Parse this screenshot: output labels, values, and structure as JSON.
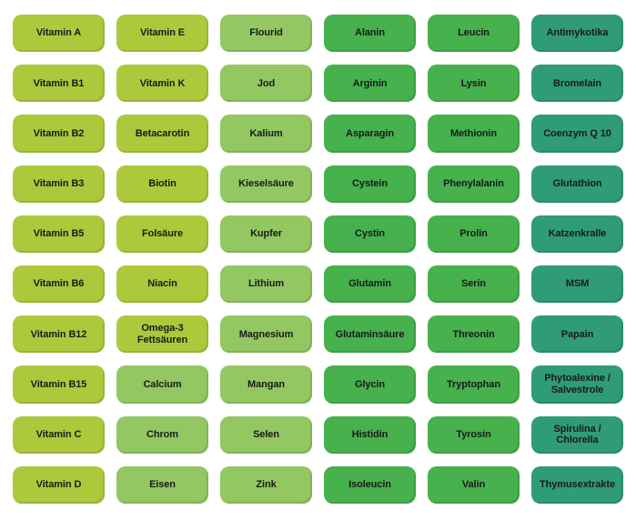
{
  "palette": {
    "vitamin": "#acc93b",
    "mineral": "#92c762",
    "amino": "#46b14d",
    "extra": "#2f9c75",
    "text": "#1a1a1a",
    "background": "#ffffff"
  },
  "grid": {
    "columns": 6,
    "rows": 10
  },
  "cells": [
    {
      "label": "Vitamin A",
      "category": "vitamin"
    },
    {
      "label": "Vitamin E",
      "category": "vitamin"
    },
    {
      "label": "Flourid",
      "category": "mineral"
    },
    {
      "label": "Alanin",
      "category": "amino"
    },
    {
      "label": "Leucin",
      "category": "amino"
    },
    {
      "label": "Antimykotika",
      "category": "extra"
    },
    {
      "label": "Vitamin B1",
      "category": "vitamin"
    },
    {
      "label": "Vitamin K",
      "category": "vitamin"
    },
    {
      "label": "Jod",
      "category": "mineral"
    },
    {
      "label": "Arginin",
      "category": "amino"
    },
    {
      "label": "Lysin",
      "category": "amino"
    },
    {
      "label": "Bromelain",
      "category": "extra"
    },
    {
      "label": "Vitamin B2",
      "category": "vitamin"
    },
    {
      "label": "Betacarotin",
      "category": "vitamin"
    },
    {
      "label": "Kalium",
      "category": "mineral"
    },
    {
      "label": "Asparagin",
      "category": "amino"
    },
    {
      "label": "Methionin",
      "category": "amino"
    },
    {
      "label": "Coenzym Q 10",
      "category": "extra"
    },
    {
      "label": "Vitamin B3",
      "category": "vitamin"
    },
    {
      "label": "Biotin",
      "category": "vitamin"
    },
    {
      "label": "Kieselsäure",
      "category": "mineral"
    },
    {
      "label": "Cystein",
      "category": "amino"
    },
    {
      "label": "Phenylalanin",
      "category": "amino"
    },
    {
      "label": "Glutathion",
      "category": "extra"
    },
    {
      "label": "Vitamin B5",
      "category": "vitamin"
    },
    {
      "label": "Folsäure",
      "category": "vitamin"
    },
    {
      "label": "Kupfer",
      "category": "mineral"
    },
    {
      "label": "Cystin",
      "category": "amino"
    },
    {
      "label": "Prolin",
      "category": "amino"
    },
    {
      "label": "Katzenkralle",
      "category": "extra"
    },
    {
      "label": "Vitamin B6",
      "category": "vitamin"
    },
    {
      "label": "Niacin",
      "category": "vitamin"
    },
    {
      "label": "Lithium",
      "category": "mineral"
    },
    {
      "label": "Glutamin",
      "category": "amino"
    },
    {
      "label": "Serin",
      "category": "amino"
    },
    {
      "label": "MSM",
      "category": "extra"
    },
    {
      "label": "Vitamin B12",
      "category": "vitamin"
    },
    {
      "label": "Omega-3 Fettsäuren",
      "category": "vitamin"
    },
    {
      "label": "Magnesium",
      "category": "mineral"
    },
    {
      "label": "Glutaminsäure",
      "category": "amino"
    },
    {
      "label": "Threonin",
      "category": "amino"
    },
    {
      "label": "Papain",
      "category": "extra"
    },
    {
      "label": "Vitamin B15",
      "category": "vitamin"
    },
    {
      "label": "Calcium",
      "category": "mineral"
    },
    {
      "label": "Mangan",
      "category": "mineral"
    },
    {
      "label": "Glycin",
      "category": "amino"
    },
    {
      "label": "Tryptophan",
      "category": "amino"
    },
    {
      "label": "Phytoalexine / Salvestrole",
      "category": "extra"
    },
    {
      "label": "Vitamin C",
      "category": "vitamin"
    },
    {
      "label": "Chrom",
      "category": "mineral"
    },
    {
      "label": "Selen",
      "category": "mineral"
    },
    {
      "label": "Histidin",
      "category": "amino"
    },
    {
      "label": "Tyrosin",
      "category": "amino"
    },
    {
      "label": "Spirulina / Chlorella",
      "category": "extra"
    },
    {
      "label": "Vitamin D",
      "category": "vitamin"
    },
    {
      "label": "Eisen",
      "category": "mineral"
    },
    {
      "label": "Zink",
      "category": "mineral"
    },
    {
      "label": "Isoleucin",
      "category": "amino"
    },
    {
      "label": "Valin",
      "category": "amino"
    },
    {
      "label": "Thymusextrakte",
      "category": "extra"
    }
  ]
}
